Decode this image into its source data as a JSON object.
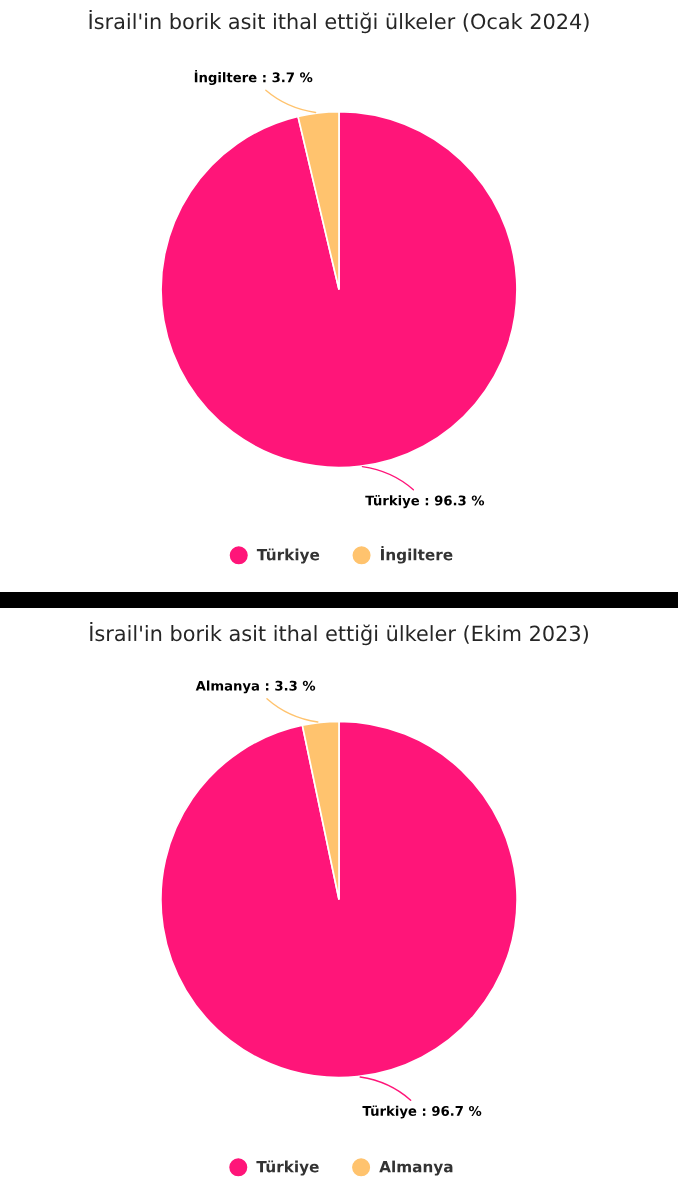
{
  "chart_data": [
    {
      "type": "pie",
      "title": "İsrail'in borik asit ithal ettiği ülkeler (Ocak 2024)",
      "categories": [
        "Türkiye",
        "İngiltere"
      ],
      "values": [
        96.3,
        3.7
      ],
      "colors": [
        "#ff1579",
        "#ffc36e"
      ],
      "value_labels": [
        "Türkiye : 96.3 %",
        "İngiltere : 3.7 %"
      ],
      "legend": "bottom"
    },
    {
      "type": "pie",
      "title": "İsrail'in borik asit ithal ettiği ülkeler (Ekim 2023)",
      "categories": [
        "Türkiye",
        "Almanya"
      ],
      "values": [
        96.7,
        3.3
      ],
      "colors": [
        "#ff1579",
        "#ffc36e"
      ],
      "value_labels": [
        "Türkiye : 96.7 %",
        "Almanya : 3.3 %"
      ],
      "legend": "bottom"
    }
  ]
}
